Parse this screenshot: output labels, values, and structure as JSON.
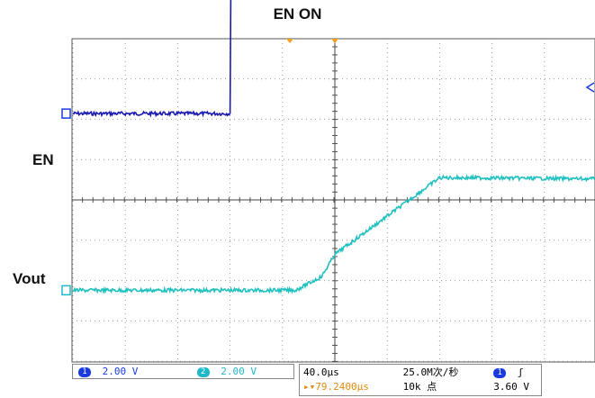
{
  "chart_data": {
    "type": "line",
    "title": "EN ON",
    "labels": {
      "ch1": "EN",
      "ch2": "Vout"
    },
    "grid": true,
    "x_unit": "µs",
    "x_range": [
      -200,
      200
    ],
    "y_range_div": [
      -4,
      4
    ],
    "trigger_time_us": -79.24,
    "series": [
      {
        "name": "EN",
        "color": "#1a1ab0",
        "x": [
          -200,
          -80,
          -79.5,
          0,
          200
        ],
        "y": [
          2.14,
          2.14,
          5.76,
          5.72,
          5.7
        ]
      },
      {
        "name": "Vout",
        "color": "#20c0c0",
        "x": [
          -200,
          -30,
          -10,
          0,
          80,
          100,
          200
        ],
        "y": [
          -2.24,
          -2.24,
          -1.9,
          -1.35,
          0.55,
          0.55,
          0.52
        ]
      }
    ]
  },
  "status": {
    "ch1_num": "1",
    "ch1_scale": "2.00 V",
    "ch1_color": "#1a3ae0",
    "ch2_num": "2",
    "ch2_scale": "2.00 V",
    "ch2_color": "#1fb8c8",
    "timebase": "40.0µs",
    "sample_rate": "25.0M次/秒",
    "trigger_offset": "▸▾79.2400µs",
    "record_length": "10k 点",
    "trig_source": "1",
    "trig_slope": "ʃ",
    "trig_level": "3.60 V"
  }
}
